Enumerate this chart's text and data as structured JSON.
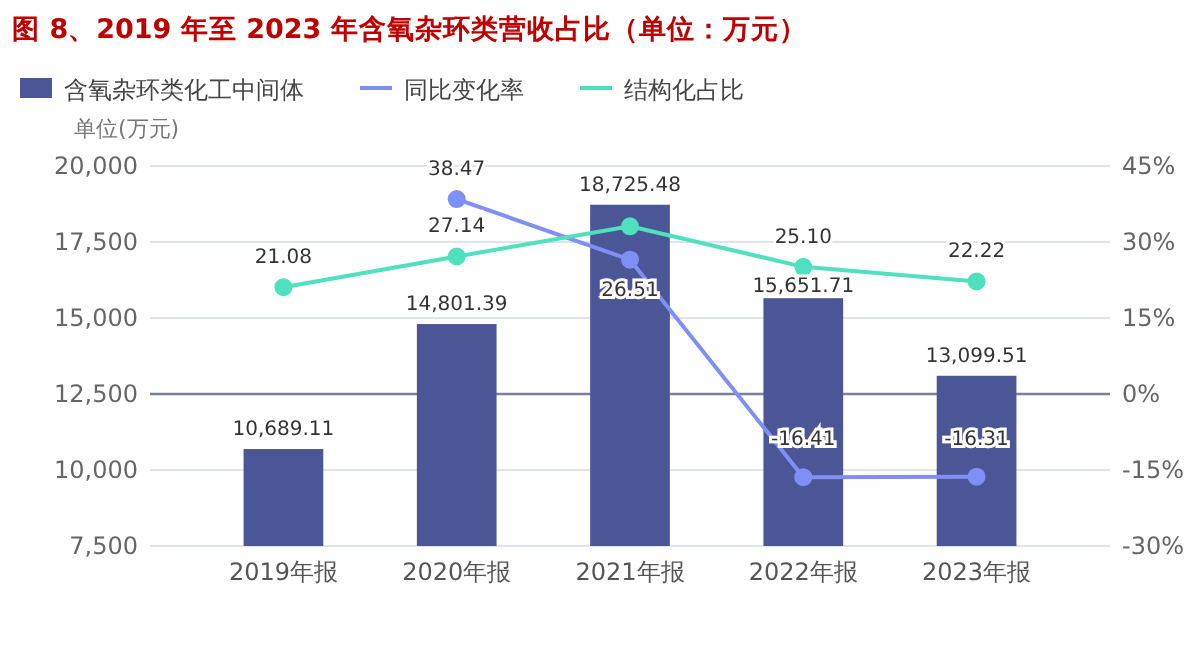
{
  "chart_data": {
    "type": "bar",
    "title": "图 8、2019 年至 2023 年含氧杂环类营收占比（单位：万元）",
    "ylabel": "单位(万元)",
    "categories": [
      "2019年报",
      "2020年报",
      "2021年报",
      "2022年报",
      "2023年报"
    ],
    "series": [
      {
        "name": "含氧杂环类化工中间体",
        "color": "#4b5697",
        "values": [
          10689.11,
          14801.39,
          18725.48,
          15651.71,
          13099.51
        ],
        "value_labels": [
          "10,689.11",
          "14,801.39",
          "18,725.48",
          "15,651.71",
          "13,099.51"
        ]
      },
      {
        "name": "同比变化率",
        "type": "line",
        "axis": "y2",
        "color": "#7f8ff5",
        "values": [
          null,
          38.47,
          26.51,
          -16.41,
          -16.31
        ],
        "value_labels": [
          null,
          "38.47",
          "26.51",
          "-16.41",
          "-16.31"
        ]
      },
      {
        "name": "结构化占比",
        "type": "line",
        "axis": "y2",
        "color": "#4fe0bd",
        "values": [
          21.08,
          27.14,
          33.1,
          25.1,
          22.22
        ],
        "value_labels": [
          "21.08",
          "27.14",
          null,
          "25.10",
          "22.22"
        ]
      }
    ],
    "ylim": [
      7500,
      20000
    ],
    "yticks": [
      {
        "value": 7500,
        "label": "7,500"
      },
      {
        "value": 10000,
        "label": "10,000"
      },
      {
        "value": 12500,
        "label": "12,500"
      },
      {
        "value": 15000,
        "label": "15,000"
      },
      {
        "value": 17500,
        "label": "17,500"
      },
      {
        "value": 20000,
        "label": "20,000"
      }
    ],
    "y2lim": [
      -30,
      45
    ],
    "y2ticks": [
      {
        "value": -30,
        "label": "-30%"
      },
      {
        "value": -15,
        "label": "-15%"
      },
      {
        "value": 0,
        "label": "0%"
      },
      {
        "value": 15,
        "label": "15%"
      },
      {
        "value": 30,
        "label": "30%"
      },
      {
        "value": 45,
        "label": "45%"
      }
    ],
    "ref_lines": [
      {
        "axis": "y2",
        "value": 0,
        "color": "#7a8096"
      }
    ],
    "grid": "y",
    "legend": "top left",
    "marker": "circle"
  }
}
